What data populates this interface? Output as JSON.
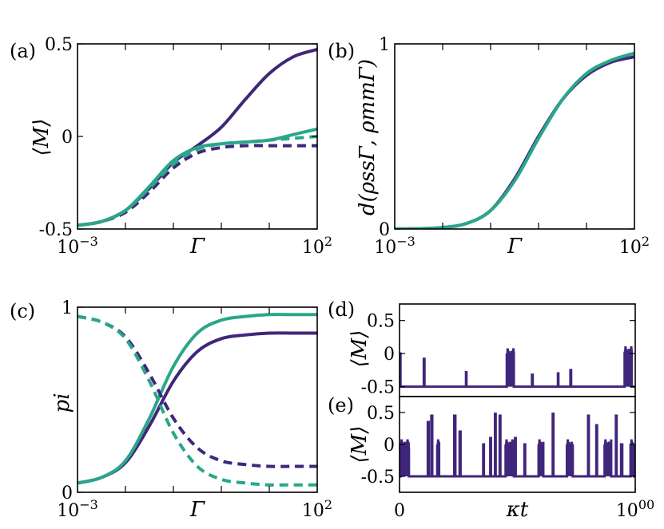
{
  "colors": {
    "purple": "#40267a",
    "teal": "#2aa68a"
  },
  "chart_data": [
    {
      "id": "a",
      "panel_label": "(a)",
      "type": "line",
      "xscale": "log",
      "xlim": [
        -3,
        2
      ],
      "ylim": [
        -0.5,
        0.5
      ],
      "xlabel": "Γ",
      "ylabel": "⟨M⟩",
      "xticks": [
        {
          "v": -3,
          "label": "10−3"
        },
        {
          "v": 2,
          "label": "102"
        }
      ],
      "yticks": [
        {
          "v": 0.5,
          "label": "0.5"
        },
        {
          "v": 0,
          "label": "0"
        },
        {
          "v": -0.5,
          "label": "-0.5"
        }
      ],
      "series": [
        {
          "name": "purple-solid",
          "color": "purple",
          "dash": false,
          "x": [
            -3,
            -2.5,
            -2,
            -1.5,
            -1,
            -0.5,
            0,
            0.5,
            1,
            1.5,
            2
          ],
          "y": [
            -0.48,
            -0.46,
            -0.4,
            -0.28,
            -0.14,
            -0.05,
            0.05,
            0.2,
            0.34,
            0.43,
            0.47
          ]
        },
        {
          "name": "purple-dashed",
          "color": "purple",
          "dash": true,
          "x": [
            -3,
            -2.5,
            -2,
            -1.5,
            -1,
            -0.5,
            0,
            0.5,
            1,
            1.5,
            2
          ],
          "y": [
            -0.48,
            -0.46,
            -0.41,
            -0.3,
            -0.17,
            -0.09,
            -0.06,
            -0.05,
            -0.05,
            -0.05,
            -0.05
          ]
        },
        {
          "name": "teal-solid",
          "color": "teal",
          "dash": false,
          "x": [
            -3,
            -2.5,
            -2,
            -1.5,
            -1,
            -0.5,
            0,
            0.5,
            1,
            1.5,
            2
          ],
          "y": [
            -0.48,
            -0.46,
            -0.4,
            -0.27,
            -0.13,
            -0.06,
            -0.04,
            -0.03,
            -0.02,
            0.01,
            0.04
          ]
        },
        {
          "name": "teal-dashed",
          "color": "teal",
          "dash": true,
          "x": [
            -3,
            -2.5,
            -2,
            -1.5,
            -1,
            -0.5,
            0,
            0.5,
            1,
            1.5,
            2
          ],
          "y": [
            -0.48,
            -0.46,
            -0.4,
            -0.28,
            -0.15,
            -0.07,
            -0.04,
            -0.03,
            -0.02,
            -0.01,
            0.0
          ]
        }
      ]
    },
    {
      "id": "b",
      "panel_label": "(b)",
      "type": "line",
      "xscale": "log",
      "xlim": [
        -3,
        2
      ],
      "ylim": [
        0,
        1
      ],
      "xlabel": "Γ",
      "ylabel": "d(ρssΓ, ρmmΓ)",
      "xticks": [
        {
          "v": -3,
          "label": "10−3"
        },
        {
          "v": 2,
          "label": "102"
        }
      ],
      "yticks": [
        {
          "v": 1,
          "label": "1"
        },
        {
          "v": 0,
          "label": "0"
        }
      ],
      "series": [
        {
          "name": "purple-solid",
          "color": "purple",
          "dash": false,
          "x": [
            -3,
            -2.5,
            -2,
            -1.5,
            -1,
            -0.5,
            0,
            0.5,
            1,
            1.5,
            2
          ],
          "y": [
            0,
            0.002,
            0.008,
            0.03,
            0.1,
            0.27,
            0.5,
            0.7,
            0.83,
            0.9,
            0.93
          ]
        },
        {
          "name": "teal-solid",
          "color": "teal",
          "dash": false,
          "x": [
            -3,
            -2.5,
            -2,
            -1.5,
            -1,
            -0.5,
            0,
            0.5,
            1,
            1.5,
            2
          ],
          "y": [
            0,
            0.002,
            0.008,
            0.03,
            0.1,
            0.26,
            0.49,
            0.7,
            0.84,
            0.91,
            0.95
          ]
        }
      ]
    },
    {
      "id": "c",
      "panel_label": "(c)",
      "type": "line",
      "xscale": "log",
      "xlim": [
        -3,
        2
      ],
      "ylim": [
        0,
        1
      ],
      "xlabel": "Γ",
      "ylabel": "pi",
      "xticks": [
        {
          "v": -3,
          "label": "10−3"
        },
        {
          "v": 2,
          "label": "102"
        }
      ],
      "yticks": [
        {
          "v": 1,
          "label": "1"
        },
        {
          "v": 0,
          "label": "0"
        }
      ],
      "series": [
        {
          "name": "purple-solid",
          "color": "purple",
          "dash": false,
          "x": [
            -3,
            -2.5,
            -2,
            -1.5,
            -1,
            -0.5,
            0,
            0.5,
            1,
            1.5,
            2
          ],
          "y": [
            0.05,
            0.08,
            0.16,
            0.36,
            0.6,
            0.76,
            0.83,
            0.85,
            0.86,
            0.86,
            0.86
          ]
        },
        {
          "name": "teal-solid",
          "color": "teal",
          "dash": false,
          "x": [
            -3,
            -2.5,
            -2,
            -1.5,
            -1,
            -0.5,
            0,
            0.5,
            1,
            1.5,
            2
          ],
          "y": [
            0.05,
            0.08,
            0.17,
            0.4,
            0.68,
            0.86,
            0.93,
            0.95,
            0.96,
            0.96,
            0.96
          ]
        },
        {
          "name": "purple-dashed",
          "color": "purple",
          "dash": true,
          "x": [
            -3,
            -2.5,
            -2,
            -1.5,
            -1,
            -0.5,
            0,
            0.5,
            1,
            1.5,
            2
          ],
          "y": [
            0.95,
            0.92,
            0.84,
            0.64,
            0.4,
            0.24,
            0.17,
            0.15,
            0.14,
            0.14,
            0.14
          ]
        },
        {
          "name": "teal-dashed",
          "color": "teal",
          "dash": true,
          "x": [
            -3,
            -2.5,
            -2,
            -1.5,
            -1,
            -0.5,
            0,
            0.5,
            1,
            1.5,
            2
          ],
          "y": [
            0.95,
            0.92,
            0.83,
            0.6,
            0.32,
            0.14,
            0.07,
            0.05,
            0.04,
            0.04,
            0.04
          ]
        }
      ]
    },
    {
      "id": "d",
      "panel_label": "(d)",
      "type": "line",
      "xlim": [
        0,
        1000
      ],
      "ylim": [
        -0.65,
        0.75
      ],
      "xlabel": "",
      "ylabel": "⟨M⟩",
      "xticks": [],
      "yticks": [
        {
          "v": 0.5,
          "label": "0.5"
        },
        {
          "v": 0,
          "label": "0"
        },
        {
          "v": -0.5,
          "label": "-0.5"
        }
      ],
      "baseline": -0.5,
      "events": [
        {
          "t": 0,
          "w": 4,
          "v": 0.0
        },
        {
          "t": 103,
          "w": 3,
          "v": -0.08
        },
        {
          "t": 282,
          "w": 2,
          "v": -0.28
        },
        {
          "t": 455,
          "w": 30,
          "v": 0.0
        },
        {
          "t": 562,
          "w": 3,
          "v": -0.32
        },
        {
          "t": 672,
          "w": 2,
          "v": -0.3
        },
        {
          "t": 725,
          "w": 3,
          "v": -0.25
        },
        {
          "t": 955,
          "w": 30,
          "v": 0.03
        }
      ]
    },
    {
      "id": "e",
      "panel_label": "(e)",
      "type": "line",
      "xlim": [
        0,
        1000
      ],
      "ylim": [
        -0.75,
        0.75
      ],
      "xlabel": "κt",
      "ylabel": "⟨M⟩",
      "xticks": [
        {
          "v": 0,
          "label": "0"
        },
        {
          "v": 1000,
          "label": "1000"
        }
      ],
      "yticks": [
        {
          "v": 0.5,
          "label": "0.5"
        },
        {
          "v": 0,
          "label": "0"
        },
        {
          "v": -0.5,
          "label": "-0.5"
        }
      ],
      "baseline": -0.5,
      "events": [
        {
          "t": 5,
          "w": 35,
          "v": 0.0
        },
        {
          "t": 120,
          "w": 4,
          "v": 0.35
        },
        {
          "t": 135,
          "w": 4,
          "v": 0.45
        },
        {
          "t": 160,
          "w": 8,
          "v": 0.0
        },
        {
          "t": 232,
          "w": 5,
          "v": 0.45
        },
        {
          "t": 255,
          "w": 4,
          "v": 0.2
        },
        {
          "t": 355,
          "w": 3,
          "v": 0.0
        },
        {
          "t": 385,
          "w": 3,
          "v": 0.1
        },
        {
          "t": 405,
          "w": 3,
          "v": 0.48
        },
        {
          "t": 425,
          "w": 3,
          "v": 0.45
        },
        {
          "t": 450,
          "w": 35,
          "v": 0.0
        },
        {
          "t": 490,
          "w": 3,
          "v": 0.1
        },
        {
          "t": 530,
          "w": 3,
          "v": 0.0
        },
        {
          "t": 590,
          "w": 20,
          "v": 0.0
        },
        {
          "t": 650,
          "w": 3,
          "v": 0.48
        },
        {
          "t": 710,
          "w": 25,
          "v": 0.0
        },
        {
          "t": 800,
          "w": 3,
          "v": 0.45
        },
        {
          "t": 835,
          "w": 3,
          "v": 0.3
        },
        {
          "t": 870,
          "w": 28,
          "v": 0.0
        },
        {
          "t": 918,
          "w": 3,
          "v": 0.45
        },
        {
          "t": 940,
          "w": 5,
          "v": 0.0
        },
        {
          "t": 980,
          "w": 15,
          "v": 0.0
        }
      ]
    }
  ]
}
